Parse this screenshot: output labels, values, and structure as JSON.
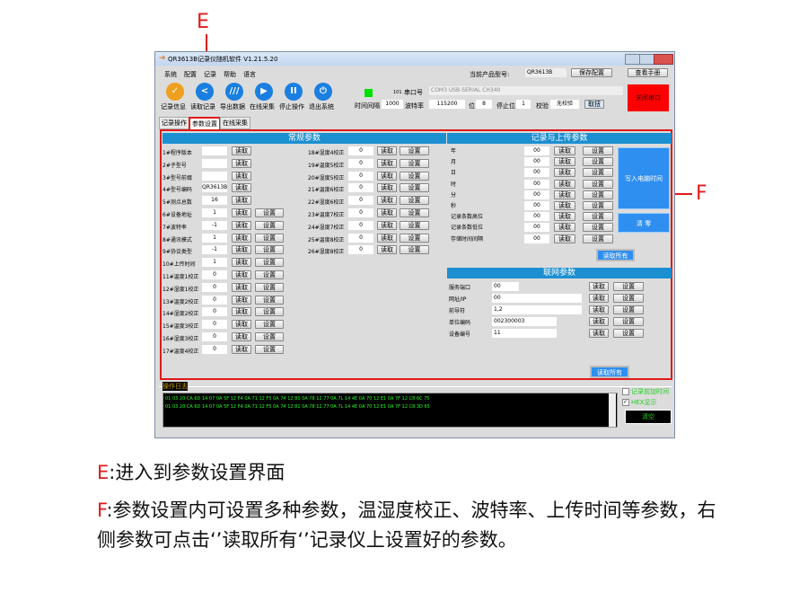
{
  "annotations": {
    "e": "E",
    "f": "F"
  },
  "window": {
    "title": "QR3613B记录仪随机软件  V1.21.5.20",
    "menu": [
      "系统",
      "配置",
      "记录",
      "帮助",
      "语言"
    ],
    "product_label": "当前产品型号:",
    "product_value": "QR3613B",
    "save_config": "保存配置",
    "manual": "查看手册"
  },
  "toolbar": {
    "buttons": [
      "记录信息",
      "读取记录",
      "导出数据",
      "在线采集",
      "停止操作",
      "退出系统"
    ],
    "interval_label": "时间间隔",
    "interval_value": "1000",
    "counter": "101",
    "port_label": "串口号",
    "port_value": "COM3 USB-SERIAL CH340",
    "baud_label": "波特率",
    "baud_value": "115200",
    "bits_label": "位",
    "bits_value": "8",
    "stop_label": "停止位",
    "stop_value": "1",
    "parity_label": "校验",
    "parity_value": "无校验",
    "fetch": "取扭",
    "close_port": "关闭串口",
    "status_color": "#00e000"
  },
  "tabs": [
    "记录操作",
    "参数设置",
    "在线采集"
  ],
  "read": "读取",
  "set": "设置",
  "general": {
    "title": "常规参数",
    "rows": [
      {
        "label": "1#程序版本",
        "value": "",
        "set": false
      },
      {
        "label": "2#子型号",
        "value": "",
        "set": false
      },
      {
        "label": "3#型号前缀",
        "value": "",
        "set": false
      },
      {
        "label": "4#型号编码",
        "value": "QR3613B",
        "set": false
      },
      {
        "label": "5#测点总数",
        "value": "16",
        "set": false
      },
      {
        "label": "6#设备地址",
        "value": "1",
        "set": true
      },
      {
        "label": "7#波特率",
        "value": "-1",
        "set": true
      },
      {
        "label": "8#通讯模式",
        "value": "1",
        "set": true
      },
      {
        "label": "9#协议类型",
        "value": "-1",
        "set": true
      },
      {
        "label": "10#上传时间",
        "value": "1",
        "set": true
      },
      {
        "label": "11#温度1校正",
        "value": "0",
        "set": true
      },
      {
        "label": "12#湿度1校正",
        "value": "0",
        "set": true
      },
      {
        "label": "13#温度2校正",
        "value": "0",
        "set": true
      },
      {
        "label": "14#湿度2校正",
        "value": "0",
        "set": true
      },
      {
        "label": "15#温度3校正",
        "value": "0",
        "set": true
      },
      {
        "label": "16#湿度3校正",
        "value": "0",
        "set": true
      },
      {
        "label": "17#温度4校正",
        "value": "0",
        "set": true
      }
    ],
    "rows2": [
      {
        "label": "18#湿度4校正",
        "value": "0"
      },
      {
        "label": "19#温度5校正",
        "value": "0"
      },
      {
        "label": "20#湿度5校正",
        "value": "0"
      },
      {
        "label": "21#温度6校正",
        "value": "0"
      },
      {
        "label": "22#湿度6校正",
        "value": "0"
      },
      {
        "label": "23#温度7校正",
        "value": "0"
      },
      {
        "label": "24#湿度7校正",
        "value": "0"
      },
      {
        "label": "25#温度8校正",
        "value": "0"
      },
      {
        "label": "26#湿度8校正",
        "value": "0"
      }
    ]
  },
  "record": {
    "title": "记录与上传参数",
    "rows": [
      {
        "label": "年",
        "value": "00"
      },
      {
        "label": "月",
        "value": "00"
      },
      {
        "label": "日",
        "value": "00"
      },
      {
        "label": "时",
        "value": "00"
      },
      {
        "label": "分",
        "value": "00"
      },
      {
        "label": "秒",
        "value": "00"
      },
      {
        "label": "记录条数高位",
        "value": "00"
      },
      {
        "label": "记录条数低位",
        "value": "00"
      },
      {
        "label": "存储时间间隔",
        "value": "00"
      }
    ],
    "write_time": "写入电脑时间",
    "clear": "清 零",
    "read_all": "读取所有"
  },
  "network": {
    "title": "联网参数",
    "rows": [
      {
        "label": "服务端口",
        "value": "00"
      },
      {
        "label": "网址/IP",
        "value": "00"
      },
      {
        "label": "前导符",
        "value": "1,2"
      },
      {
        "label": "单位编码",
        "value": "002300003"
      },
      {
        "label": "设备编号",
        "value": "11"
      }
    ],
    "read_all": "读取所有"
  },
  "log": {
    "title": "操作日志",
    "lines": [
      "01 03 20 CA 6D 14 07 0A 5F 12 F4 0A 71 12 F5 0A 74 12 80 0A 78 12 77 0A 7L 14 4E 0A 70 12 E1 0A 7F 12 C8 6C 75",
      "01 03 20 CA 6D 14 07 0A 5F 12 F4 0A 71 12 F5 0A 74 12 81 0A 78 12 77 0A 7L 14 4E 0A 70 12 E1 0A 7F 12 C8 3D 65"
    ],
    "opt_time": "记录前加时间",
    "opt_hex": "HEX显示",
    "hex_checked": true,
    "clear": "清空"
  },
  "captions": {
    "e_key": "E",
    "e_text": ":进入到参数设置界面",
    "f_key": "F",
    "f_text": ":参数设置内可设置多种参数，温湿度校正、波特率、上传时间等参数，右侧参数可点击‘’读取所有‘’记录仪上设置好的参数。"
  }
}
